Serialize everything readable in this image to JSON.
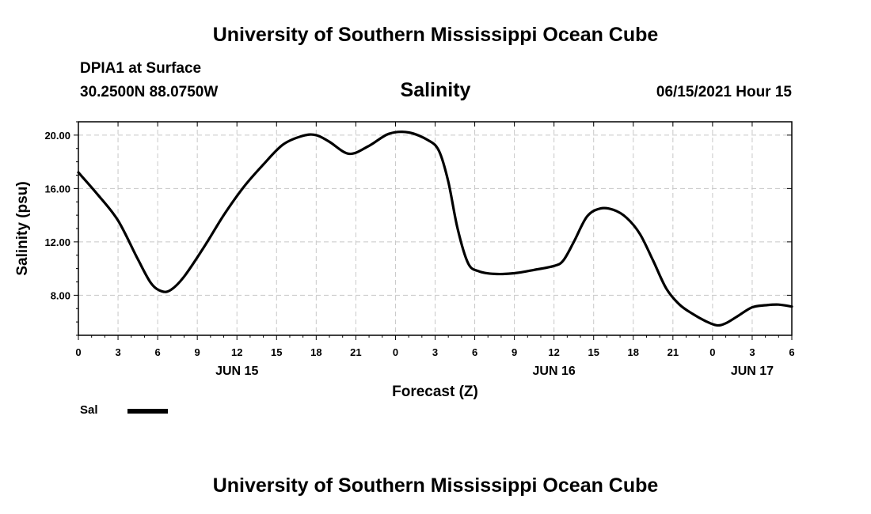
{
  "header": {
    "title": "University of Southern Mississippi Ocean Cube",
    "footer_title": "University of Southern Mississippi Ocean Cube",
    "station": "DPIA1 at Surface",
    "coordinates": "30.2500N  88.0750W",
    "variable": "Salinity",
    "datetime": "06/15/2021 Hour 15"
  },
  "legend": {
    "label": "Sal",
    "color": "#000000"
  },
  "chart_data": {
    "type": "line",
    "title": "Salinity",
    "xlabel": "Forecast (Z)",
    "ylabel": "Salinity (psu)",
    "xlim": [
      0,
      54
    ],
    "ylim": [
      5,
      21
    ],
    "grid": true,
    "yticks": [
      {
        "value": 8,
        "label": "8.00"
      },
      {
        "value": 12,
        "label": "12.00"
      },
      {
        "value": 16,
        "label": "16.00"
      },
      {
        "value": 20,
        "label": "20.00"
      }
    ],
    "xticks": [
      {
        "value": 0,
        "label": "0"
      },
      {
        "value": 3,
        "label": "3"
      },
      {
        "value": 6,
        "label": "6"
      },
      {
        "value": 9,
        "label": "9"
      },
      {
        "value": 12,
        "label": "12"
      },
      {
        "value": 15,
        "label": "15"
      },
      {
        "value": 18,
        "label": "18"
      },
      {
        "value": 21,
        "label": "21"
      },
      {
        "value": 24,
        "label": "0"
      },
      {
        "value": 27,
        "label": "3"
      },
      {
        "value": 30,
        "label": "6"
      },
      {
        "value": 33,
        "label": "9"
      },
      {
        "value": 36,
        "label": "12"
      },
      {
        "value": 39,
        "label": "15"
      },
      {
        "value": 42,
        "label": "18"
      },
      {
        "value": 45,
        "label": "21"
      },
      {
        "value": 48,
        "label": "0"
      },
      {
        "value": 51,
        "label": "3"
      },
      {
        "value": 54,
        "label": "6"
      }
    ],
    "day_labels": [
      {
        "value": 12,
        "label": "JUN 15"
      },
      {
        "value": 36,
        "label": "JUN 16"
      },
      {
        "value": 51,
        "label": "JUN 17"
      }
    ],
    "series": [
      {
        "name": "Sal",
        "x": [
          0,
          1.5,
          3,
          4.5,
          5.5,
          6.3,
          7,
          8,
          9.5,
          11,
          12.5,
          14,
          15.5,
          17,
          18,
          19,
          20.5,
          22,
          23.5,
          25,
          26.5,
          27.3,
          28,
          28.7,
          29.5,
          30.3,
          31.5,
          33,
          34.5,
          36,
          36.7,
          37.5,
          38.5,
          39.5,
          40.5,
          41.5,
          42.5,
          43.5,
          44.5,
          45.5,
          46.5,
          47.5,
          48.3,
          49,
          50,
          51,
          52,
          53,
          54
        ],
        "y": [
          17.2,
          15.5,
          13.6,
          10.7,
          8.9,
          8.3,
          8.4,
          9.4,
          11.6,
          14.0,
          16.1,
          17.8,
          19.3,
          19.95,
          20.0,
          19.5,
          18.6,
          19.2,
          20.1,
          20.2,
          19.6,
          18.8,
          16.5,
          13.0,
          10.4,
          9.8,
          9.6,
          9.65,
          9.9,
          10.2,
          10.6,
          12.0,
          13.9,
          14.5,
          14.4,
          13.8,
          12.6,
          10.6,
          8.5,
          7.3,
          6.6,
          6.05,
          5.75,
          5.9,
          6.5,
          7.1,
          7.25,
          7.3,
          7.15
        ]
      }
    ]
  }
}
